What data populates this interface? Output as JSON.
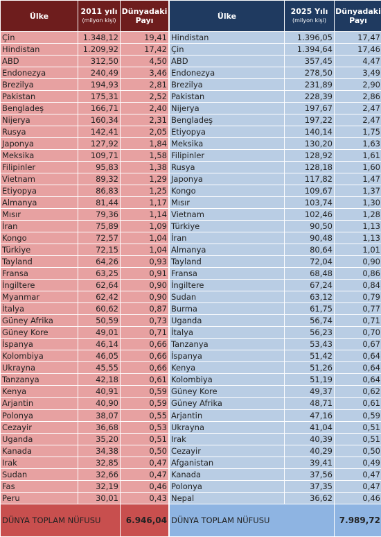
{
  "left": {
    "header": {
      "country": "Ülke",
      "year": "2011 yılı",
      "unit": "(milyon kişi)",
      "share": "Dünyadaki Payı"
    },
    "rows": [
      [
        "Çin",
        "1.348,12",
        "19,41"
      ],
      [
        "Hindistan",
        "1.209,92",
        "17,42"
      ],
      [
        "ABD",
        "312,50",
        "4,50"
      ],
      [
        "Endonezya",
        "240,49",
        "3,46"
      ],
      [
        "Brezilya",
        "194,93",
        "2,81"
      ],
      [
        "Pakistan",
        "175,31",
        "2,52"
      ],
      [
        "Bengladeş",
        "166,71",
        "2,40"
      ],
      [
        "Nijerya",
        "160,34",
        "2,31"
      ],
      [
        "Rusya",
        "142,41",
        "2,05"
      ],
      [
        "Japonya",
        "127,92",
        "1,84"
      ],
      [
        "Meksika",
        "109,71",
        "1,58"
      ],
      [
        "Filipinler",
        "95,83",
        "1,38"
      ],
      [
        "Vietnam",
        "89,32",
        "1,29"
      ],
      [
        "Etiyopya",
        "86,83",
        "1,25"
      ],
      [
        "Almanya",
        "81,44",
        "1,17"
      ],
      [
        "Mısır",
        "79,36",
        "1,14"
      ],
      [
        "İran",
        "75,89",
        "1,09"
      ],
      [
        "Kongo",
        "72,57",
        "1,04"
      ],
      [
        "Türkiye",
        "72,15",
        "1,04"
      ],
      [
        "Tayland",
        "64,26",
        "0,93"
      ],
      [
        "Fransa",
        "63,25",
        "0,91"
      ],
      [
        "İngiltere",
        "62,64",
        "0,90"
      ],
      [
        "Myanmar",
        "62,42",
        "0,90"
      ],
      [
        "İtalya",
        "60,62",
        "0,87"
      ],
      [
        "Güney Afrika",
        "50,59",
        "0,73"
      ],
      [
        "Güney Kore",
        "49,01",
        "0,71"
      ],
      [
        "İspanya",
        "46,14",
        "0,66"
      ],
      [
        "Kolombiya",
        "46,05",
        "0,66"
      ],
      [
        "Ukrayna",
        "45,55",
        "0,66"
      ],
      [
        "Tanzanya",
        "42,18",
        "0,61"
      ],
      [
        "Kenya",
        "40,91",
        "0,59"
      ],
      [
        "Arjantin",
        "40,90",
        "0,59"
      ],
      [
        "Polonya",
        "38,07",
        "0,55"
      ],
      [
        "Cezayir",
        "36,68",
        "0,53"
      ],
      [
        "Uganda",
        "35,20",
        "0,51"
      ],
      [
        "Kanada",
        "34,38",
        "0,50"
      ],
      [
        "Irak",
        "32,85",
        "0,47"
      ],
      [
        "Sudan",
        "32,66",
        "0,47"
      ],
      [
        "Fas",
        "32,19",
        "0,46"
      ],
      [
        "Peru",
        "30,01",
        "0,43"
      ]
    ],
    "total": {
      "label": "DÜNYA TOPLAM NÜFUSU",
      "value": "6.946,04"
    }
  },
  "right": {
    "header": {
      "country": "Ülke",
      "year": "2025 Yılı",
      "unit": "(milyon kişi)",
      "share": "Dünyadaki Payı"
    },
    "rows": [
      [
        "Hindistan",
        "1.396,05",
        "17,47"
      ],
      [
        "Çin",
        "1.394,64",
        "17,46"
      ],
      [
        "ABD",
        "357,45",
        "4,47"
      ],
      [
        "Endonezya",
        "278,50",
        "3,49"
      ],
      [
        "Brezilya",
        "231,89",
        "2,90"
      ],
      [
        "Pakistan",
        "228,39",
        "2,86"
      ],
      [
        "Nijerya",
        "197,67",
        "2,47"
      ],
      [
        "Bengladeş",
        "197,22",
        "2,47"
      ],
      [
        "Etiyopya",
        "140,14",
        "1,75"
      ],
      [
        "Meksika",
        "130,20",
        "1,63"
      ],
      [
        "Filipinler",
        "128,92",
        "1,61"
      ],
      [
        "Rusya",
        "128,18",
        "1,60"
      ],
      [
        "Japonya",
        "117,82",
        "1,47"
      ],
      [
        "Kongo",
        "109,67",
        "1,37"
      ],
      [
        "Mısır",
        "103,74",
        "1,30"
      ],
      [
        "Vietnam",
        "102,46",
        "1,28"
      ],
      [
        "Türkiye",
        "90,50",
        "1,13"
      ],
      [
        "İran",
        "90,48",
        "1,13"
      ],
      [
        "Almanya",
        "80,64",
        "1,01"
      ],
      [
        "Tayland",
        "72,04",
        "0,90"
      ],
      [
        "Fransa",
        "68,48",
        "0,86"
      ],
      [
        "İngiltere",
        "67,24",
        "0,84"
      ],
      [
        "Sudan",
        "63,12",
        "0,79"
      ],
      [
        "Burma",
        "61,75",
        "0,77"
      ],
      [
        "Uganda",
        "56,74",
        "0,71"
      ],
      [
        "İtalya",
        "56,23",
        "0,70"
      ],
      [
        "Tanzanya",
        "53,43",
        "0,67"
      ],
      [
        "İspanya",
        "51,42",
        "0,64"
      ],
      [
        "Kenya",
        "51,26",
        "0,64"
      ],
      [
        "Kolombiya",
        "51,19",
        "0,64"
      ],
      [
        "Güney Kore",
        "49,37",
        "0,62"
      ],
      [
        "Güney Afrika",
        "48,71",
        "0,61"
      ],
      [
        "Arjantin",
        "47,16",
        "0,59"
      ],
      [
        "Ukrayna",
        "41,04",
        "0,51"
      ],
      [
        "Irak",
        "40,39",
        "0,51"
      ],
      [
        "Cezayir",
        "40,29",
        "0,50"
      ],
      [
        "Afganistan",
        "39,41",
        "0,49"
      ],
      [
        "Kanada",
        "37,56",
        "0,47"
      ],
      [
        "Polonya",
        "37,35",
        "0,47"
      ],
      [
        "Nepal",
        "36,62",
        "0,46"
      ]
    ],
    "total": {
      "label": "DÜNYA TOPLAM NÜFUSU",
      "value": "7.989,72"
    }
  }
}
